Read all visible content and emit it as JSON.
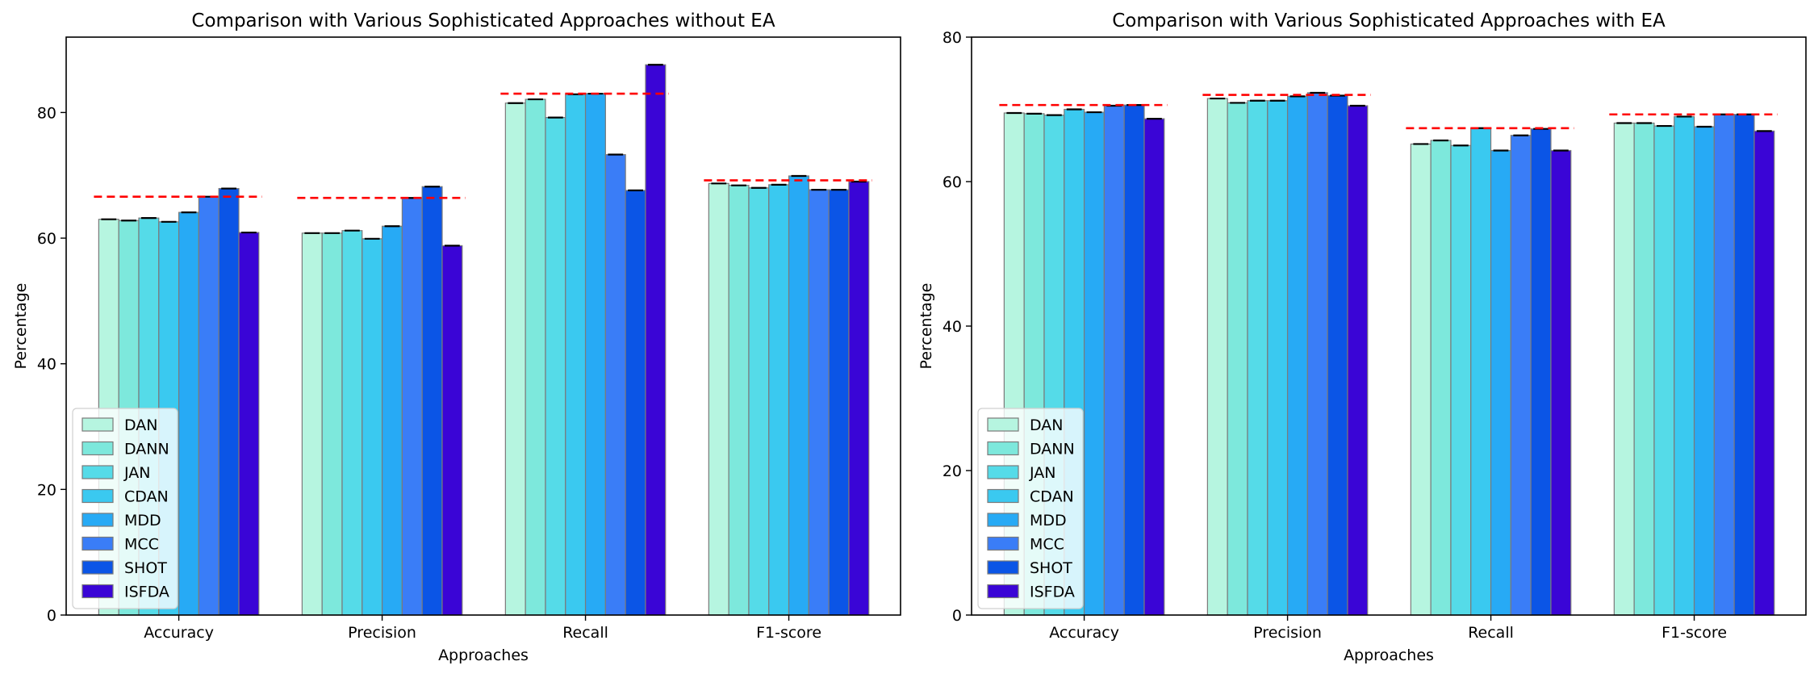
{
  "series_names": [
    "DAN",
    "DANN",
    "JAN",
    "CDAN",
    "MDD",
    "MCC",
    "SHOT",
    "ISFDA"
  ],
  "colors": {
    "series": [
      "#b6f5e0",
      "#7de8dc",
      "#55dbe8",
      "#3ac9f0",
      "#27aaf5",
      "#3a7df7",
      "#0b55e6",
      "#3a05d6"
    ],
    "best_line": "#ff0000",
    "bar_edge": "#7a7a7a"
  },
  "chart_data": [
    {
      "type": "bar",
      "title": "Comparison with Various Sophisticated Approaches without EA",
      "xlabel": "Approaches",
      "ylabel": "Percentage",
      "ylim": [
        0,
        92
      ],
      "yticks": [
        0,
        20,
        40,
        60,
        80
      ],
      "categories": [
        "Accuracy",
        "Precision",
        "Recall",
        "F1-score"
      ],
      "series": [
        {
          "name": "DAN",
          "values": [
            63.0,
            60.8,
            81.5,
            68.7
          ]
        },
        {
          "name": "DANN",
          "values": [
            62.8,
            60.8,
            82.1,
            68.4
          ]
        },
        {
          "name": "JAN",
          "values": [
            63.2,
            61.2,
            79.2,
            68.0
          ]
        },
        {
          "name": "CDAN",
          "values": [
            62.6,
            59.9,
            82.9,
            68.5
          ]
        },
        {
          "name": "MDD",
          "values": [
            64.1,
            61.9,
            83.0,
            69.9
          ]
        },
        {
          "name": "MCC",
          "values": [
            66.6,
            66.4,
            73.3,
            67.7
          ]
        },
        {
          "name": "SHOT",
          "values": [
            67.9,
            68.2,
            67.6,
            67.7
          ]
        },
        {
          "name": "ISFDA",
          "values": [
            60.9,
            58.8,
            87.6,
            69.0
          ]
        }
      ],
      "reference_lines": [
        66.6,
        66.4,
        83.0,
        69.2
      ],
      "legend": "lower-left",
      "grid": false
    },
    {
      "type": "bar",
      "title": "Comparison with Various Sophisticated Approaches with EA",
      "xlabel": "Approaches",
      "ylabel": "Percentage",
      "ylim": [
        0,
        80
      ],
      "yticks": [
        0,
        20,
        40,
        60,
        80
      ],
      "categories": [
        "Accuracy",
        "Precision",
        "Recall",
        "F1-score"
      ],
      "series": [
        {
          "name": "DAN",
          "values": [
            69.5,
            71.5,
            65.2,
            68.1
          ]
        },
        {
          "name": "DANN",
          "values": [
            69.4,
            70.9,
            65.7,
            68.1
          ]
        },
        {
          "name": "JAN",
          "values": [
            69.2,
            71.2,
            65.0,
            67.7
          ]
        },
        {
          "name": "CDAN",
          "values": [
            70.0,
            71.2,
            67.4,
            69.0
          ]
        },
        {
          "name": "MDD",
          "values": [
            69.6,
            71.8,
            64.3,
            67.6
          ]
        },
        {
          "name": "MCC",
          "values": [
            70.5,
            72.3,
            66.4,
            69.3
          ]
        },
        {
          "name": "SHOT",
          "values": [
            70.6,
            71.9,
            67.3,
            69.3
          ]
        },
        {
          "name": "ISFDA",
          "values": [
            68.7,
            70.5,
            64.3,
            67.0
          ]
        }
      ],
      "reference_lines": [
        70.6,
        72.0,
        67.4,
        69.3
      ],
      "legend": "lower-left",
      "grid": false
    }
  ]
}
